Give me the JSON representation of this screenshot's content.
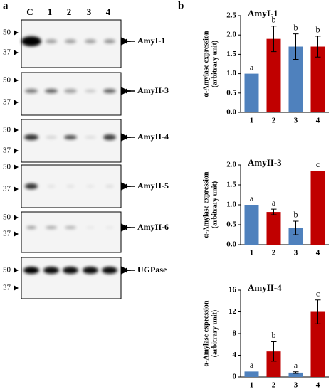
{
  "panels": {
    "a": {
      "label": "a",
      "lanes": [
        "C",
        "1",
        "2",
        "3",
        "4"
      ],
      "blots": [
        {
          "name": "AmyI-1",
          "markers": [
            "50",
            "37"
          ]
        },
        {
          "name": "AmyII-3",
          "markers": [
            "50",
            "37"
          ]
        },
        {
          "name": "AmyII-4",
          "markers": [
            "50",
            "37"
          ]
        },
        {
          "name": "AmyII-5",
          "markers": [
            "50",
            "37"
          ]
        },
        {
          "name": "AmyII-6",
          "markers": [
            "50",
            "37"
          ]
        },
        {
          "name": "UGPase",
          "markers": [
            "50",
            "37"
          ]
        }
      ]
    },
    "b": {
      "label": "b"
    }
  },
  "chart_data": [
    {
      "type": "bar",
      "title": "AmyI-1",
      "ylabel": [
        "α-Amylase expression",
        "(arbitrary unit)"
      ],
      "categories": [
        "1",
        "2",
        "3",
        "4"
      ],
      "values": [
        1.0,
        1.9,
        1.7,
        1.7
      ],
      "errors": [
        0,
        0.33,
        0.33,
        0.27
      ],
      "annotations": [
        "a",
        "b",
        "b",
        "b"
      ],
      "colors": [
        "#4f81bd",
        "#c00000",
        "#4f81bd",
        "#c00000"
      ],
      "ylim": [
        0,
        2.5
      ],
      "yticks": [
        {
          "value": 0,
          "label": "0.0"
        },
        {
          "value": 0.5,
          "label": "0.5"
        },
        {
          "value": 1,
          "label": "1.0"
        },
        {
          "value": 1.5,
          "label": "1.5"
        },
        {
          "value": 2,
          "label": "2.0"
        },
        {
          "value": 2.5,
          "label": "2.5"
        }
      ]
    },
    {
      "type": "bar",
      "title": "AmyII-3",
      "ylabel": [
        "α-Amylase expression",
        "(arbitrary unit)"
      ],
      "categories": [
        "1",
        "2",
        "3",
        "4"
      ],
      "values": [
        1.0,
        0.82,
        0.42,
        1.85
      ],
      "errors": [
        0,
        0.07,
        0.17,
        0
      ],
      "annotations": [
        "a",
        "a",
        "b",
        "c"
      ],
      "colors": [
        "#4f81bd",
        "#c00000",
        "#4f81bd",
        "#c00000"
      ],
      "ylim": [
        0,
        2.0
      ],
      "yticks": [
        {
          "value": 0,
          "label": "0.0"
        },
        {
          "value": 0.5,
          "label": "0.5"
        },
        {
          "value": 1,
          "label": "1.0"
        },
        {
          "value": 1.5,
          "label": "1.5"
        },
        {
          "value": 2,
          "label": "2.0"
        }
      ]
    },
    {
      "type": "bar",
      "title": "AmyII-4",
      "ylabel": [
        "α-Amylase expression",
        "(arbitrary unit)"
      ],
      "categories": [
        "1",
        "2",
        "3",
        "4"
      ],
      "values": [
        1.0,
        4.7,
        0.8,
        12
      ],
      "errors": [
        0,
        1.8,
        0.15,
        2.2
      ],
      "annotations": [
        "a",
        "b",
        "a",
        "c"
      ],
      "colors": [
        "#4f81bd",
        "#c00000",
        "#4f81bd",
        "#c00000"
      ],
      "ylim": [
        0,
        16
      ],
      "yticks": [
        0,
        4,
        8,
        12,
        16
      ]
    }
  ]
}
